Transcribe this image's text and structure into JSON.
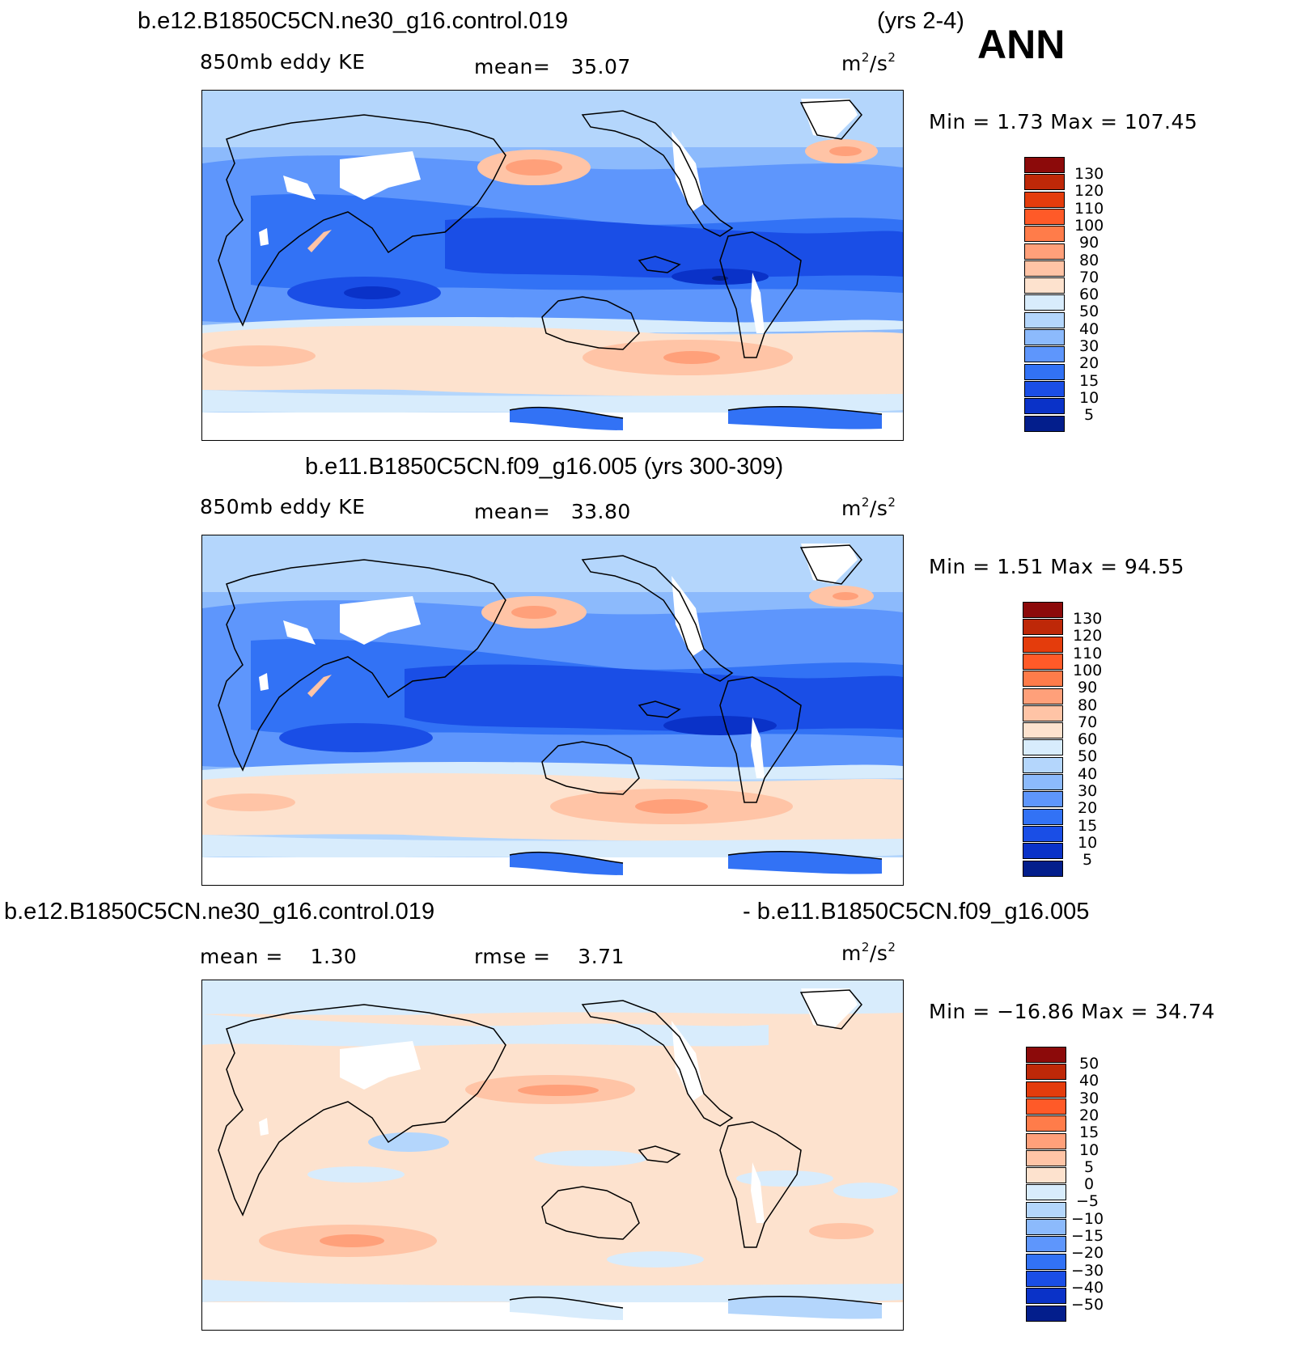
{
  "header": {
    "case_a": "b.e12.B1850C5CN.ne30_g16.control.019",
    "years_a": "(yrs 2-4)",
    "season": "ANN"
  },
  "panels": [
    {
      "id": "top",
      "title": "",
      "field_label": "850mb eddy KE",
      "stat1_label": "mean=",
      "stat1_value": "35.07",
      "stat2_label": "",
      "stat2_value": "",
      "units_base": "m",
      "units_exp1": "2",
      "units_sep": "/s",
      "units_exp2": "2",
      "minmax": "Min =     1.73  Max  =  107.45",
      "colorbar_labels": [
        "130",
        "120",
        "110",
        "100",
        "90",
        "80",
        "70",
        "60",
        "50",
        "40",
        "30",
        "20",
        "15",
        "10",
        "5"
      ],
      "colorbar_colors": [
        "#8c0a0a",
        "#be2808",
        "#e43c0c",
        "#ff5a28",
        "#ff7c4a",
        "#ffa07a",
        "#ffc4a6",
        "#fde2ce",
        "#d8ecfc",
        "#b4d6fc",
        "#8cbafc",
        "#5e96fc",
        "#3272f5",
        "#1a4ee6",
        "#0a32c8",
        "#031e8c"
      ]
    },
    {
      "id": "middle",
      "title": "b.e11.B1850C5CN.f09_g16.005 (yrs 300-309)",
      "field_label": "850mb eddy KE",
      "stat1_label": "mean=",
      "stat1_value": "33.80",
      "stat2_label": "",
      "stat2_value": "",
      "units_base": "m",
      "units_exp1": "2",
      "units_sep": "/s",
      "units_exp2": "2",
      "minmax": "Min =     1.51  Max  =   94.55",
      "colorbar_labels": [
        "130",
        "120",
        "110",
        "100",
        "90",
        "80",
        "70",
        "60",
        "50",
        "40",
        "30",
        "20",
        "15",
        "10",
        "5"
      ],
      "colorbar_colors": [
        "#8c0a0a",
        "#be2808",
        "#e43c0c",
        "#ff5a28",
        "#ff7c4a",
        "#ffa07a",
        "#ffc4a6",
        "#fde2ce",
        "#d8ecfc",
        "#b4d6fc",
        "#8cbafc",
        "#5e96fc",
        "#3272f5",
        "#1a4ee6",
        "#0a32c8",
        "#031e8c"
      ]
    },
    {
      "id": "bottom",
      "title_left": "b.e12.B1850C5CN.ne30_g16.control.019",
      "title_right": "- b.e11.B1850C5CN.f09_g16.005",
      "field_label": "",
      "stat1_label": "mean  =",
      "stat1_value": "1.30",
      "stat2_label": "rmse  =",
      "stat2_value": "3.71",
      "units_base": "m",
      "units_exp1": "2",
      "units_sep": "/s",
      "units_exp2": "2",
      "minmax": "Min  =  −16.86  Max  =    34.74",
      "colorbar_labels": [
        "50",
        "40",
        "30",
        "20",
        "15",
        "10",
        "5",
        "0",
        "−5",
        "−10",
        "−15",
        "−20",
        "−30",
        "−40",
        "−50"
      ],
      "colorbar_colors": [
        "#8c0a0a",
        "#be2808",
        "#e43c0c",
        "#ff5a28",
        "#ff7c4a",
        "#ffa07a",
        "#ffc4a6",
        "#fde2ce",
        "#d8ecfc",
        "#b4d6fc",
        "#8cbafc",
        "#5e96fc",
        "#3272f5",
        "#1a4ee6",
        "#0a32c8",
        "#031e8c"
      ]
    }
  ]
}
